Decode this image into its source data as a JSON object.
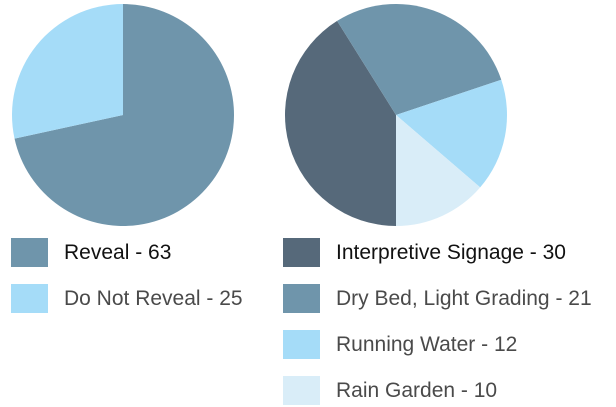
{
  "chart_data": [
    {
      "type": "pie",
      "title": "",
      "slices": [
        {
          "label": "Reveal",
          "value": 63,
          "color": "#6f95ab",
          "display": "Reveal - 63",
          "emphasis": true
        },
        {
          "label": "Do Not Reveal",
          "value": 25,
          "color": "#a5dcf8",
          "display": "Do Not Reveal - 25",
          "emphasis": false
        }
      ],
      "start_angle_deg": 0,
      "direction": "clockwise",
      "legend": "below"
    },
    {
      "type": "pie",
      "title": "",
      "slices": [
        {
          "label": "Interpretive Signage",
          "value": 30,
          "color": "#56697a",
          "display": "Interpretive Signage - 30",
          "emphasis": true
        },
        {
          "label": "Dry Bed, Light Grading",
          "value": 21,
          "color": "#6f95ab",
          "display": "Dry Bed, Light Grading - 21",
          "emphasis": false
        },
        {
          "label": "Running Water",
          "value": 12,
          "color": "#a5dcf8",
          "display": "Running Water - 12",
          "emphasis": false
        },
        {
          "label": "Rain Garden",
          "value": 10,
          "color": "#d9edf8",
          "display": "Rain Garden - 10",
          "emphasis": false
        }
      ],
      "start_angle_deg": 180,
      "direction": "clockwise",
      "legend": "below"
    }
  ]
}
